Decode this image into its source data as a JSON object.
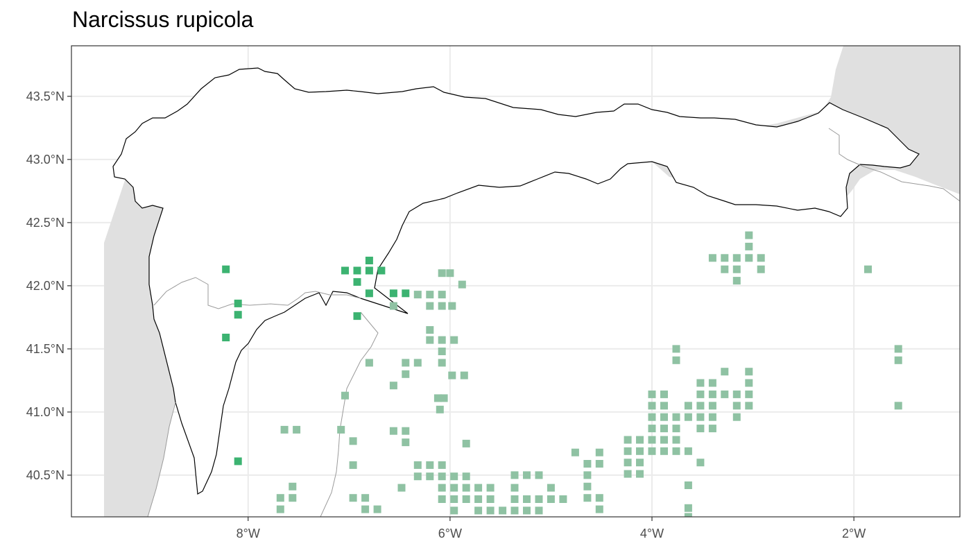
{
  "title": "Narcissus rupicola",
  "map": {
    "lon_range": [
      -9.75,
      -0.95
    ],
    "lat_range": [
      40.17,
      43.9
    ],
    "x_ticks": [
      {
        "value": -8,
        "label": "8°W"
      },
      {
        "value": -6,
        "label": "6°W"
      },
      {
        "value": -4,
        "label": "4°W"
      },
      {
        "value": -2,
        "label": "2°W"
      }
    ],
    "y_ticks": [
      {
        "value": 40.5,
        "label": "40.5°N"
      },
      {
        "value": 41.0,
        "label": "41.0°N"
      },
      {
        "value": 41.5,
        "label": "41.5°N"
      },
      {
        "value": 42.0,
        "label": "42.0°N"
      },
      {
        "value": 42.5,
        "label": "42.5°N"
      },
      {
        "value": 43.0,
        "label": "43.0°N"
      },
      {
        "value": 43.5,
        "label": "43.5°N"
      }
    ],
    "colors": {
      "land": "#e0e0e0",
      "study_region": "#ffffff",
      "grid": "#ebebeb",
      "inside_points": "#3cb371",
      "outside_points": "#8fc2a3",
      "border": "#9a9a9a"
    },
    "grid": true,
    "points_inside": [
      [
        -8.22,
        42.13
      ],
      [
        -8.1,
        41.86
      ],
      [
        -8.1,
        41.77
      ],
      [
        -8.22,
        41.59
      ],
      [
        -8.1,
        40.61
      ],
      [
        -7.04,
        42.12
      ],
      [
        -6.92,
        42.12
      ],
      [
        -6.8,
        42.12
      ],
      [
        -6.68,
        42.12
      ],
      [
        -6.8,
        42.2
      ],
      [
        -6.92,
        42.03
      ],
      [
        -6.8,
        41.94
      ],
      [
        -6.92,
        41.76
      ],
      [
        -6.56,
        41.94
      ],
      [
        -6.44,
        41.94
      ]
    ],
    "points_outside": [
      [
        -6.08,
        42.1
      ],
      [
        -6.0,
        42.1
      ],
      [
        -5.88,
        42.01
      ],
      [
        -6.32,
        41.93
      ],
      [
        -6.2,
        41.93
      ],
      [
        -6.08,
        41.93
      ],
      [
        -6.2,
        41.84
      ],
      [
        -6.08,
        41.84
      ],
      [
        -5.98,
        41.84
      ],
      [
        -6.56,
        41.84
      ],
      [
        -6.2,
        41.65
      ],
      [
        -6.2,
        41.57
      ],
      [
        -6.08,
        41.57
      ],
      [
        -5.96,
        41.57
      ],
      [
        -6.08,
        41.48
      ],
      [
        -6.08,
        41.39
      ],
      [
        -6.8,
        41.39
      ],
      [
        -6.44,
        41.39
      ],
      [
        -6.32,
        41.39
      ],
      [
        -6.44,
        41.3
      ],
      [
        -5.98,
        41.29
      ],
      [
        -5.86,
        41.29
      ],
      [
        -6.56,
        41.21
      ],
      [
        -7.04,
        41.13
      ],
      [
        -6.12,
        41.11
      ],
      [
        -6.06,
        41.11
      ],
      [
        -6.1,
        41.02
      ],
      [
        -7.64,
        40.86
      ],
      [
        -7.52,
        40.86
      ],
      [
        -7.08,
        40.86
      ],
      [
        -6.56,
        40.85
      ],
      [
        -6.44,
        40.85
      ],
      [
        -6.44,
        40.76
      ],
      [
        -6.96,
        40.77
      ],
      [
        -5.84,
        40.75
      ],
      [
        -6.96,
        40.58
      ],
      [
        -6.32,
        40.58
      ],
      [
        -6.2,
        40.58
      ],
      [
        -6.08,
        40.58
      ],
      [
        -6.32,
        40.49
      ],
      [
        -6.2,
        40.49
      ],
      [
        -6.08,
        40.49
      ],
      [
        -6.08,
        40.4
      ],
      [
        -6.08,
        40.31
      ],
      [
        -6.48,
        40.4
      ],
      [
        -7.56,
        40.41
      ],
      [
        -7.68,
        40.32
      ],
      [
        -7.56,
        40.32
      ],
      [
        -7.68,
        40.23
      ],
      [
        -6.96,
        40.32
      ],
      [
        -6.84,
        40.32
      ],
      [
        -6.84,
        40.23
      ],
      [
        -6.72,
        40.23
      ],
      [
        -5.96,
        40.49
      ],
      [
        -5.84,
        40.49
      ],
      [
        -5.96,
        40.4
      ],
      [
        -5.84,
        40.4
      ],
      [
        -5.72,
        40.4
      ],
      [
        -5.6,
        40.4
      ],
      [
        -5.96,
        40.31
      ],
      [
        -5.84,
        40.31
      ],
      [
        -5.72,
        40.31
      ],
      [
        -5.6,
        40.31
      ],
      [
        -5.96,
        40.22
      ],
      [
        -5.72,
        40.22
      ],
      [
        -5.6,
        40.22
      ],
      [
        -5.48,
        40.22
      ],
      [
        -5.36,
        40.22
      ],
      [
        -5.24,
        40.22
      ],
      [
        -5.12,
        40.22
      ],
      [
        -5.36,
        40.5
      ],
      [
        -5.24,
        40.5
      ],
      [
        -5.12,
        40.5
      ],
      [
        -5.36,
        40.4
      ],
      [
        -5.0,
        40.4
      ],
      [
        -5.36,
        40.31
      ],
      [
        -5.24,
        40.31
      ],
      [
        -5.12,
        40.31
      ],
      [
        -5.0,
        40.31
      ],
      [
        -4.88,
        40.31
      ],
      [
        -4.76,
        40.68
      ],
      [
        -4.64,
        40.59
      ],
      [
        -4.52,
        40.59
      ],
      [
        -4.64,
        40.5
      ],
      [
        -4.64,
        40.41
      ],
      [
        -4.64,
        40.32
      ],
      [
        -4.52,
        40.32
      ],
      [
        -4.52,
        40.23
      ],
      [
        -4.52,
        40.68
      ],
      [
        -4.24,
        40.78
      ],
      [
        -4.12,
        40.78
      ],
      [
        -4.24,
        40.69
      ],
      [
        -4.12,
        40.69
      ],
      [
        -4.24,
        40.6
      ],
      [
        -4.12,
        40.6
      ],
      [
        -4.24,
        40.51
      ],
      [
        -4.12,
        40.51
      ],
      [
        -4.0,
        41.14
      ],
      [
        -3.88,
        41.14
      ],
      [
        -4.0,
        41.05
      ],
      [
        -3.88,
        41.05
      ],
      [
        -4.0,
        40.96
      ],
      [
        -3.88,
        40.96
      ],
      [
        -3.76,
        40.96
      ],
      [
        -4.0,
        40.87
      ],
      [
        -3.88,
        40.87
      ],
      [
        -3.76,
        40.87
      ],
      [
        -4.0,
        40.78
      ],
      [
        -3.88,
        40.78
      ],
      [
        -3.76,
        40.78
      ],
      [
        -4.0,
        40.69
      ],
      [
        -3.88,
        40.69
      ],
      [
        -3.76,
        40.69
      ],
      [
        -3.64,
        40.69
      ],
      [
        -3.52,
        40.6
      ],
      [
        -3.64,
        41.05
      ],
      [
        -3.64,
        40.96
      ],
      [
        -3.52,
        41.23
      ],
      [
        -3.4,
        41.23
      ],
      [
        -3.52,
        41.14
      ],
      [
        -3.4,
        41.14
      ],
      [
        -3.52,
        41.05
      ],
      [
        -3.4,
        41.05
      ],
      [
        -3.52,
        40.96
      ],
      [
        -3.4,
        40.96
      ],
      [
        -3.52,
        40.87
      ],
      [
        -3.4,
        40.87
      ],
      [
        -3.28,
        41.32
      ],
      [
        -3.28,
        41.14
      ],
      [
        -3.16,
        41.14
      ],
      [
        -3.04,
        41.14
      ],
      [
        -3.04,
        41.32
      ],
      [
        -3.04,
        41.23
      ],
      [
        -3.16,
        41.05
      ],
      [
        -3.04,
        41.05
      ],
      [
        -3.16,
        40.96
      ],
      [
        -3.76,
        41.5
      ],
      [
        -3.76,
        41.41
      ],
      [
        -3.64,
        40.42
      ],
      [
        -3.64,
        40.24
      ],
      [
        -3.64,
        40.17
      ],
      [
        -3.04,
        42.4
      ],
      [
        -3.04,
        42.31
      ],
      [
        -3.4,
        42.22
      ],
      [
        -3.28,
        42.22
      ],
      [
        -3.16,
        42.22
      ],
      [
        -3.04,
        42.22
      ],
      [
        -2.92,
        42.22
      ],
      [
        -3.28,
        42.13
      ],
      [
        -3.16,
        42.13
      ],
      [
        -2.92,
        42.13
      ],
      [
        -3.16,
        42.04
      ],
      [
        -1.86,
        42.13
      ],
      [
        -1.56,
        41.5
      ],
      [
        -1.56,
        41.41
      ],
      [
        -1.56,
        41.05
      ]
    ]
  }
}
